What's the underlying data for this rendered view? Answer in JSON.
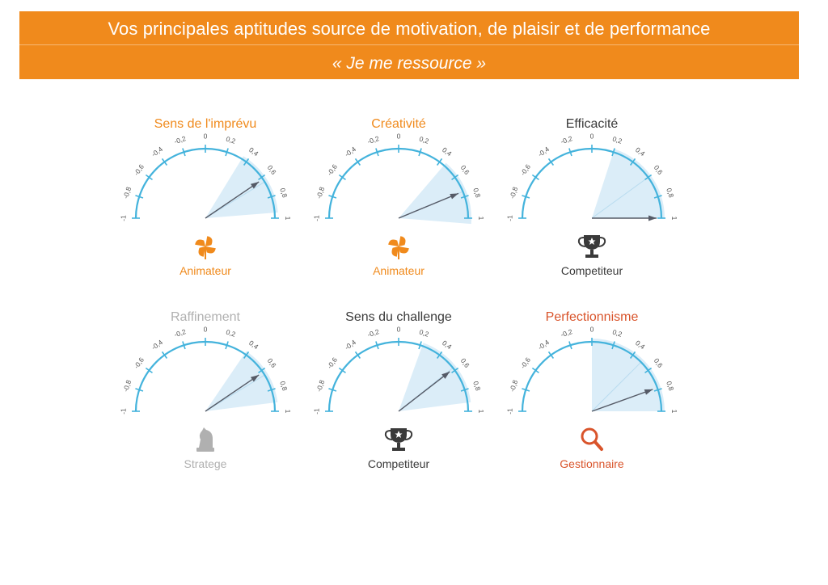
{
  "header": {
    "title": "Vos principales aptitudes source de motivation, de plaisir et de performance",
    "subtitle": "« Je me ressource »"
  },
  "colors": {
    "banner": "#f08a1c",
    "arc": "#44b3dc",
    "orange": "#f08a1c",
    "dark": "#3a3a3a",
    "grey": "#b0b0b0",
    "red": "#d9542b",
    "wedge": "#cfe7f5",
    "pointer": "#555a66"
  },
  "chart_data": [
    {
      "type": "gauge",
      "title": "Sens de l'imprévu",
      "title_color": "#f08a1c",
      "value": 0.62,
      "range": [
        0.35,
        0.95
      ],
      "min": -1,
      "max": 1,
      "ticks": [
        -1,
        -0.8,
        -0.6,
        -0.4,
        -0.2,
        0,
        0.2,
        0.4,
        0.6,
        0.8,
        1
      ],
      "tick_labels": [
        "-1",
        "-0,8",
        "-0,6",
        "-0,4",
        "-0,2",
        "0",
        "0,2",
        "0,4",
        "0,6",
        "0,8",
        "1"
      ],
      "profile": {
        "label": "Animateur",
        "icon": "pinwheel-icon",
        "color": "#f08a1c"
      }
    },
    {
      "type": "gauge",
      "title": "Créativité",
      "title_color": "#f08a1c",
      "value": 0.75,
      "range": [
        0.45,
        1.05
      ],
      "min": -1,
      "max": 1,
      "ticks": [
        -1,
        -0.8,
        -0.6,
        -0.4,
        -0.2,
        0,
        0.2,
        0.4,
        0.6,
        0.8,
        1
      ],
      "tick_labels": [
        "-1",
        "-0,8",
        "-0,6",
        "-0,4",
        "-0,2",
        "0",
        "0,2",
        "0,4",
        "0,6",
        "0,8",
        "1"
      ],
      "profile": {
        "label": "Animateur",
        "icon": "pinwheel-icon",
        "color": "#f08a1c"
      }
    },
    {
      "type": "gauge",
      "title": "Efficacité",
      "title_color": "#3a3a3a",
      "value": 1.0,
      "range": [
        0.2,
        1.0
      ],
      "min": -1,
      "max": 1,
      "ticks": [
        -1,
        -0.8,
        -0.6,
        -0.4,
        -0.2,
        0,
        0.2,
        0.4,
        0.6,
        0.8,
        1
      ],
      "tick_labels": [
        "-1",
        "-0,8",
        "-0,6",
        "-0,4",
        "-0,2",
        "0",
        "0,2",
        "0,4",
        "0,6",
        "0,8",
        "1"
      ],
      "profile": {
        "label": "Competiteur",
        "icon": "trophy-icon",
        "color": "#3a3a3a"
      }
    },
    {
      "type": "gauge",
      "title": "Raffinement",
      "title_color": "#b0b0b0",
      "value": 0.62,
      "range": [
        0.38,
        0.92
      ],
      "min": -1,
      "max": 1,
      "ticks": [
        -1,
        -0.8,
        -0.6,
        -0.4,
        -0.2,
        0,
        0.2,
        0.4,
        0.6,
        0.8,
        1
      ],
      "tick_labels": [
        "-1",
        "-0,8",
        "-0,6",
        "-0,4",
        "-0,2",
        "0",
        "0,2",
        "0,4",
        "0,6",
        "0,8",
        "1"
      ],
      "profile": {
        "label": "Stratege",
        "icon": "chess-knight-icon",
        "color": "#b0b0b0"
      }
    },
    {
      "type": "gauge",
      "title": "Sens du challenge",
      "title_color": "#3a3a3a",
      "value": 0.58,
      "range": [
        0.22,
        0.92
      ],
      "min": -1,
      "max": 1,
      "ticks": [
        -1,
        -0.8,
        -0.6,
        -0.4,
        -0.2,
        0,
        0.2,
        0.4,
        0.6,
        0.8,
        1
      ],
      "tick_labels": [
        "-1",
        "-0,8",
        "-0,6",
        "-0,4",
        "-0,2",
        "0",
        "0,2",
        "0,4",
        "0,6",
        "0,8",
        "1"
      ],
      "profile": {
        "label": "Competiteur",
        "icon": "trophy-icon",
        "color": "#3a3a3a"
      }
    },
    {
      "type": "gauge",
      "title": "Perfectionnisme",
      "title_color": "#d9542b",
      "value": 0.78,
      "range": [
        0.0,
        1.0
      ],
      "min": -1,
      "max": 1,
      "ticks": [
        -1,
        -0.8,
        -0.6,
        -0.4,
        -0.2,
        0,
        0.2,
        0.4,
        0.6,
        0.8,
        1
      ],
      "tick_labels": [
        "-1",
        "-0,8",
        "-0,6",
        "-0,4",
        "-0,2",
        "0",
        "0,2",
        "0,4",
        "0,6",
        "0,8",
        "1"
      ],
      "profile": {
        "label": "Gestionnaire",
        "icon": "magnifier-icon",
        "color": "#d9542b"
      }
    }
  ]
}
